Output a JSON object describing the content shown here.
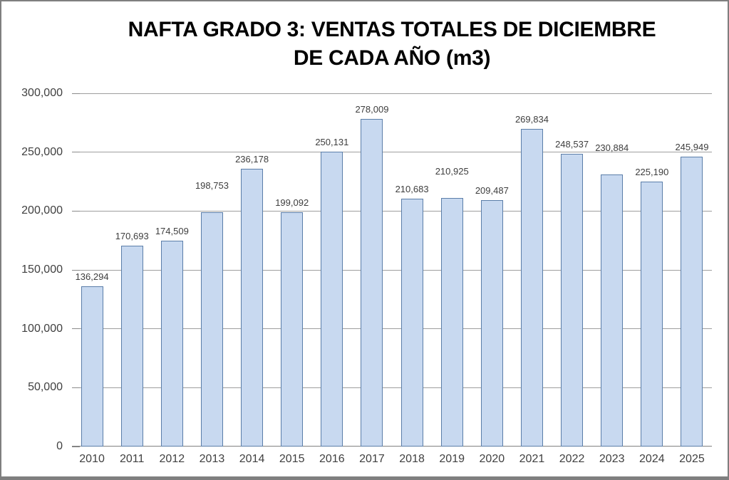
{
  "chart_data": {
    "type": "bar",
    "title": "NAFTA GRADO 3: VENTAS TOTALES DE DICIEMBRE DE CADA AÑO (m3)",
    "title_lines": [
      "NAFTA GRADO 3: VENTAS TOTALES DE DICIEMBRE",
      "DE CADA AÑO (m3)"
    ],
    "xlabel": "",
    "ylabel": "",
    "categories": [
      "2010",
      "2011",
      "2012",
      "2013",
      "2014",
      "2015",
      "2016",
      "2017",
      "2018",
      "2019",
      "2020",
      "2021",
      "2022",
      "2023",
      "2024",
      "2025"
    ],
    "values": [
      136294,
      170693,
      174509,
      198753,
      236178,
      199092,
      250131,
      278009,
      210683,
      210925,
      209487,
      269834,
      248537,
      230884,
      225190,
      245949
    ],
    "value_labels": [
      "136,294",
      "170,693",
      "174,509",
      "198,753",
      "236,178",
      "199,092",
      "250,131",
      "278,009",
      "210,683",
      "210,925",
      "209,487",
      "269,834",
      "248,537",
      "230,884",
      "225,190",
      "245,949"
    ],
    "ylim": [
      0,
      300000
    ],
    "ytick_step": 50000,
    "ytick_labels": [
      "0",
      "50,000",
      "100,000",
      "150,000",
      "200,000",
      "250,000",
      "300,000"
    ],
    "grid": true,
    "legend": false,
    "raised_label_indices": [
      3,
      9,
      13
    ],
    "colors": {
      "bar_fill": "#C8D9F0",
      "bar_border": "#5B7EA9",
      "gridline": "#9e9e9e",
      "axis_text": "#404040",
      "title_text": "#000000",
      "frame_border": "#7f7f7f"
    }
  }
}
